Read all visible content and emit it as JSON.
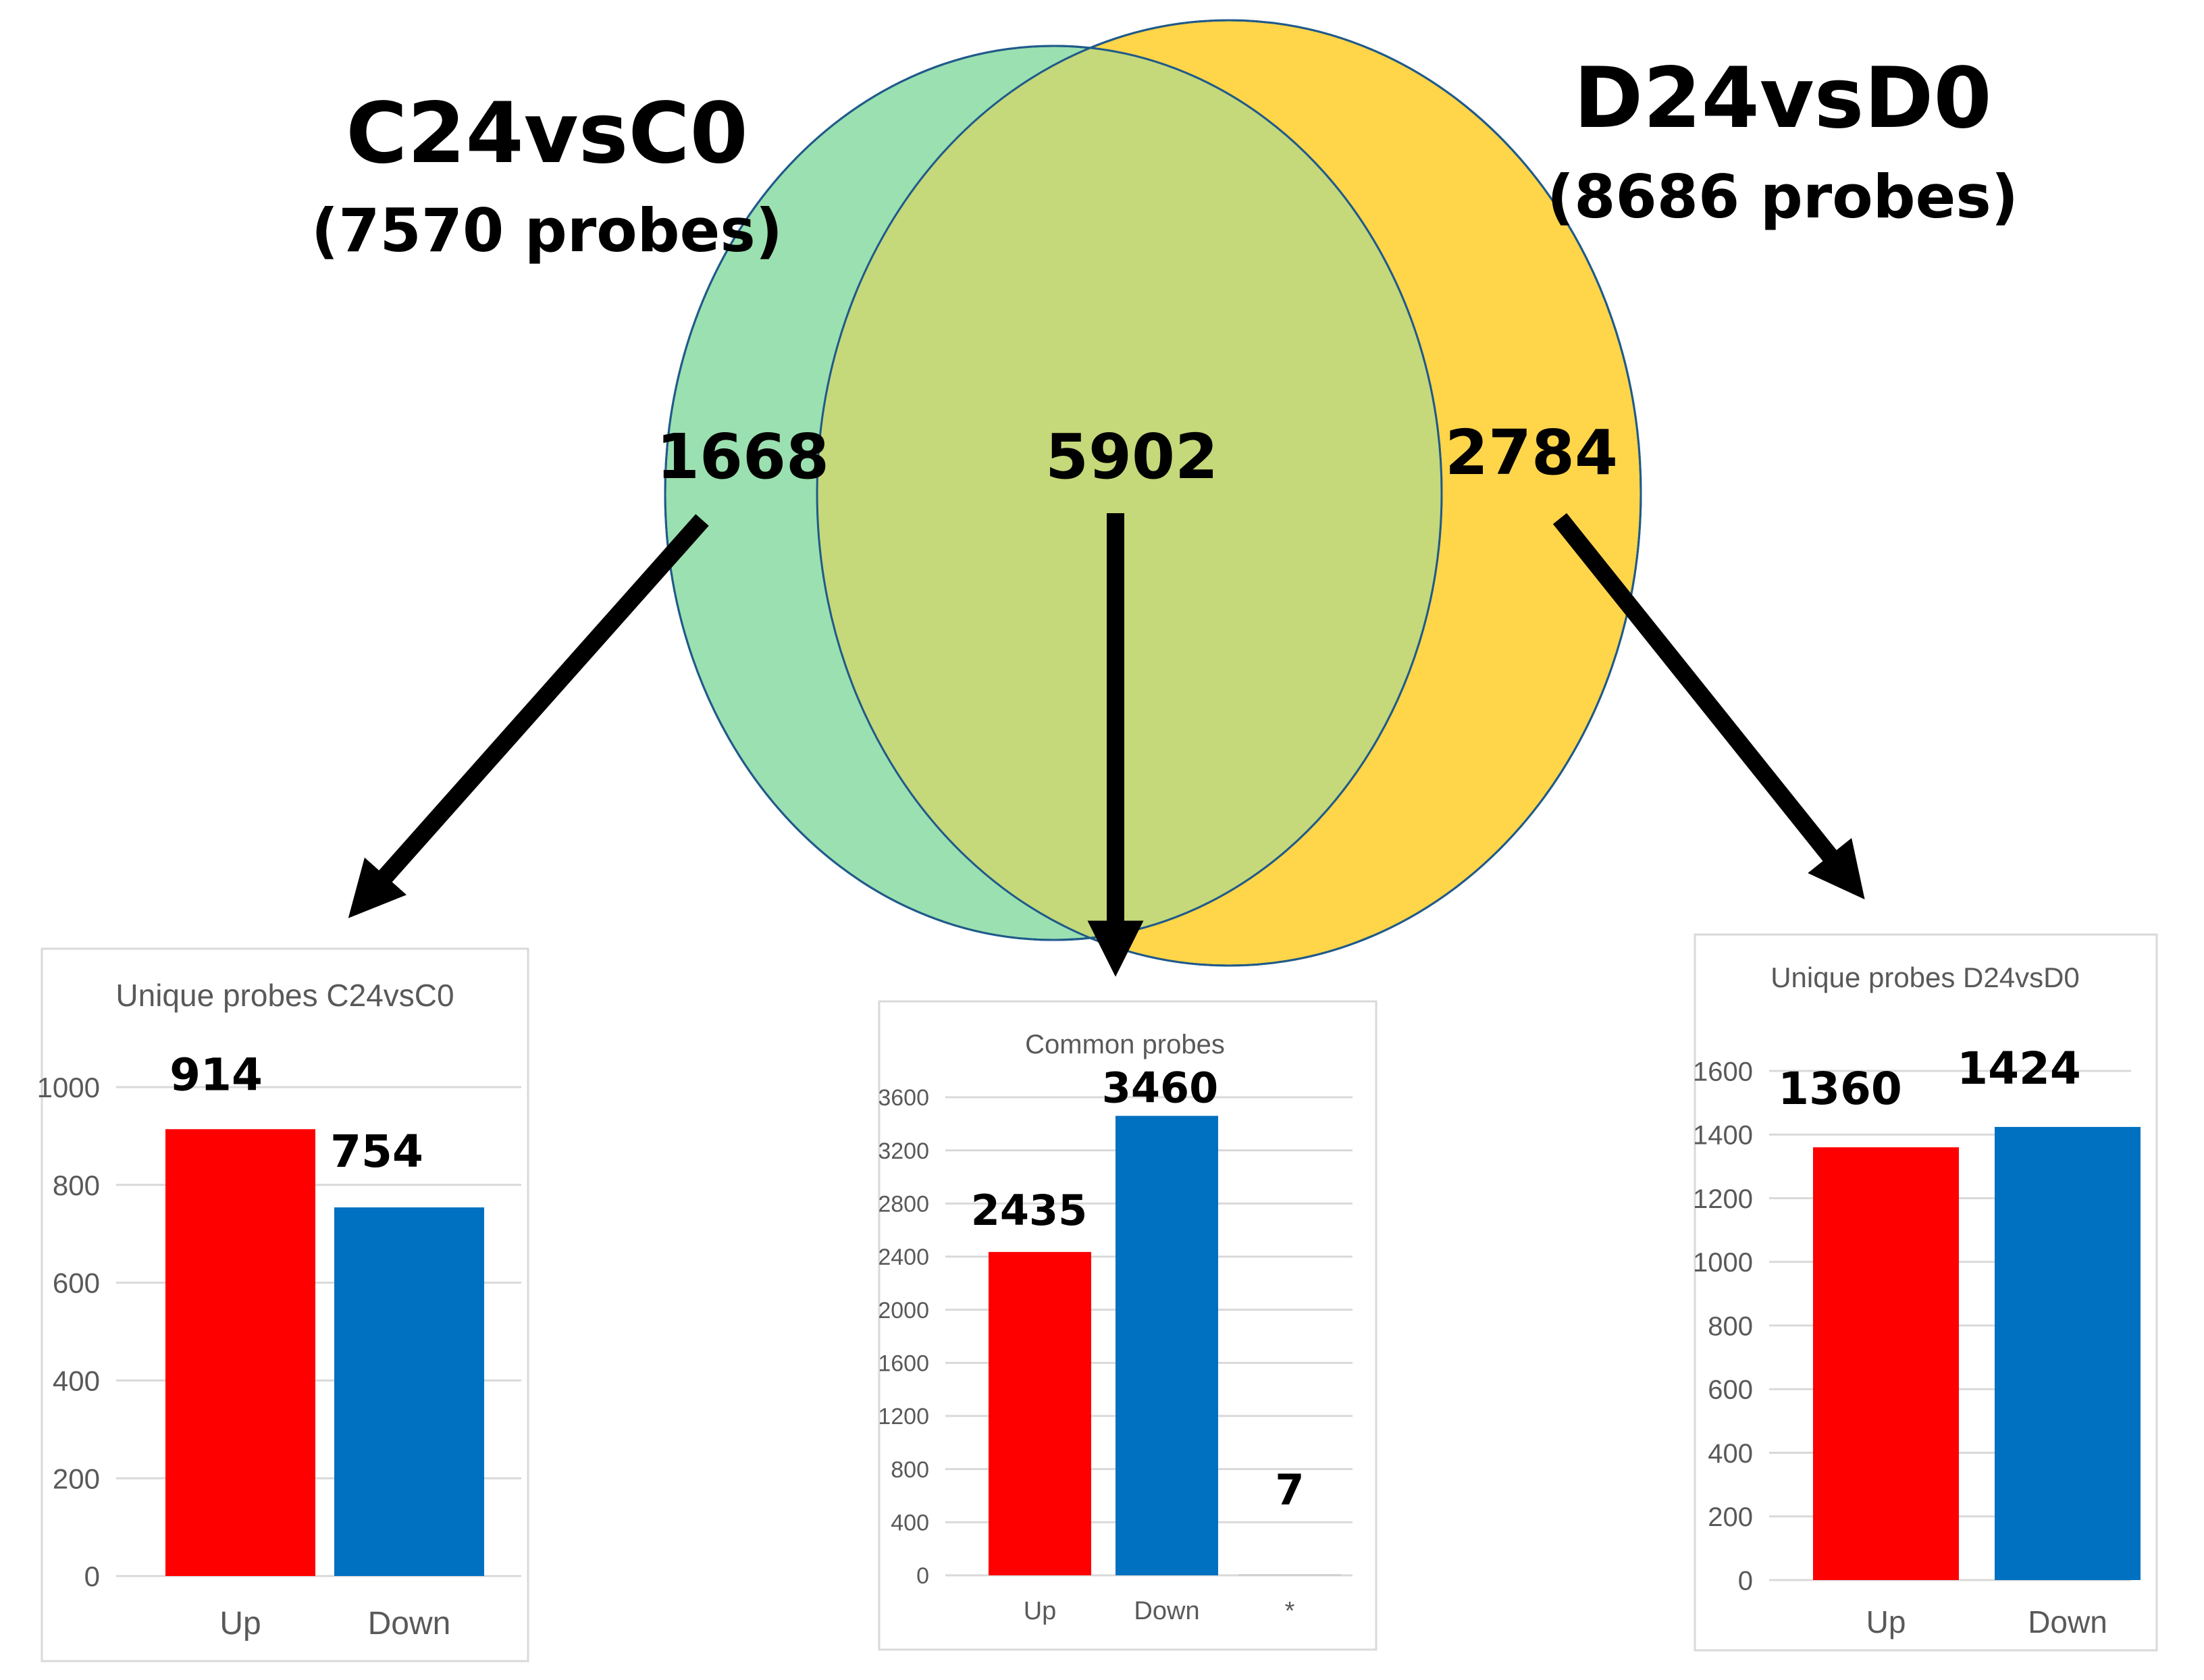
{
  "venn": {
    "left": {
      "name": "C24vsC0",
      "subtitle": "(7570 probes)",
      "only": "1668",
      "fill": "#9be0b0",
      "stroke": "#1f5a8a"
    },
    "right": {
      "name": "D24vsD0",
      "subtitle": "(8686 probes)",
      "only": "2784",
      "fill": "#ffd54a",
      "stroke": "#1f5a8a"
    },
    "overlap": {
      "value": "5902",
      "fill": "#c5d87a"
    }
  },
  "chart_data": [
    {
      "type": "bar",
      "title": "Unique probes C24vsC0",
      "categories": [
        "Up",
        "Down"
      ],
      "values": [
        914,
        754
      ],
      "data_labels": [
        "914",
        "754"
      ],
      "colors": [
        "#ff0000",
        "#0070c0"
      ],
      "ylim": [
        0,
        1000
      ],
      "yticks": [
        0,
        200,
        400,
        600,
        800,
        1000
      ],
      "xlabel": "",
      "ylabel": ""
    },
    {
      "type": "bar",
      "title": "Common probes",
      "categories": [
        "Up",
        "Down",
        "*"
      ],
      "values": [
        2435,
        3460,
        7
      ],
      "data_labels": [
        "2435",
        "3460",
        "7"
      ],
      "colors": [
        "#ff0000",
        "#0070c0",
        "#bfbfbf"
      ],
      "ylim": [
        0,
        3600
      ],
      "yticks": [
        0,
        400,
        800,
        1200,
        1600,
        2000,
        2400,
        2800,
        3200,
        3600
      ],
      "xlabel": "",
      "ylabel": ""
    },
    {
      "type": "bar",
      "title": "Unique probes D24vsD0",
      "categories": [
        "Up",
        "Down"
      ],
      "values": [
        1360,
        1424
      ],
      "data_labels": [
        "1360",
        "1424"
      ],
      "colors": [
        "#ff0000",
        "#0070c0"
      ],
      "ylim": [
        0,
        1600
      ],
      "yticks": [
        0,
        200,
        400,
        600,
        800,
        1000,
        1200,
        1400,
        1600
      ],
      "xlabel": "",
      "ylabel": ""
    }
  ]
}
